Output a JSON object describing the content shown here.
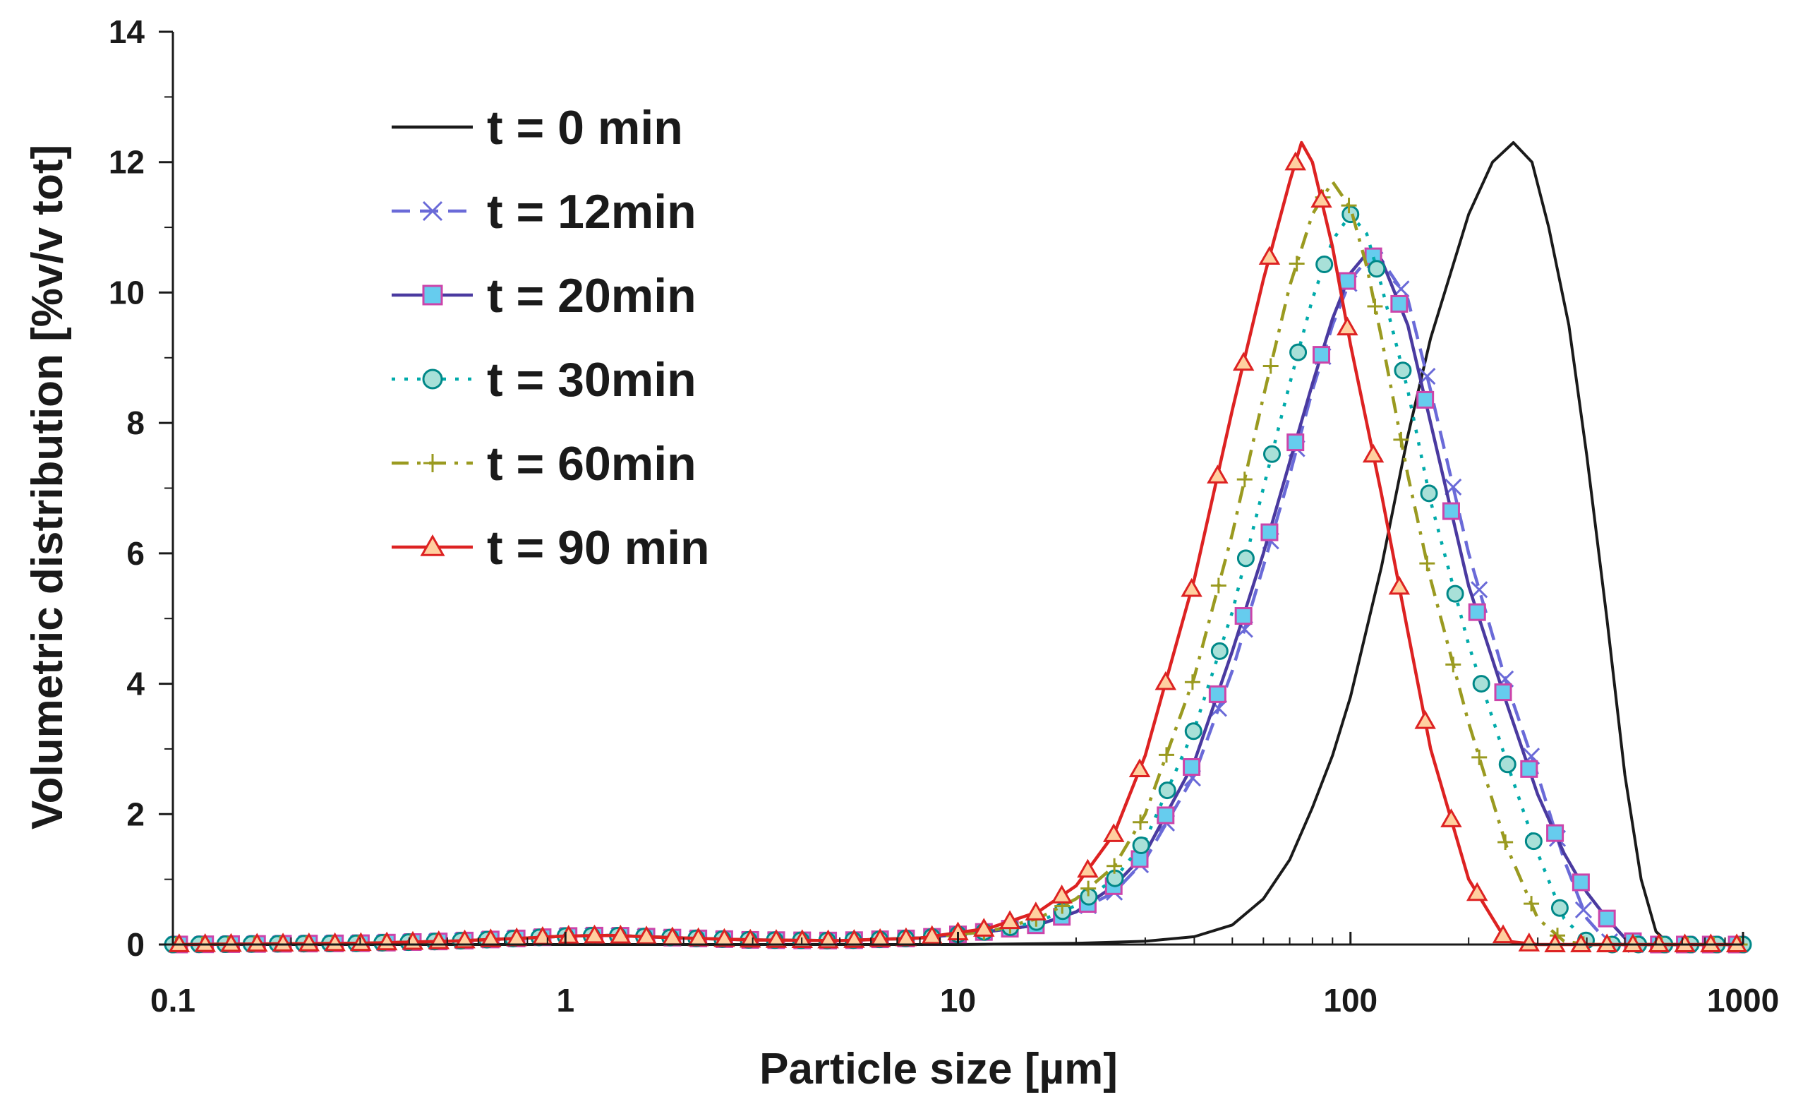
{
  "chart_data": {
    "type": "line",
    "title": "",
    "xlabel": "Particle size [µm]",
    "ylabel": "Volumetric distribution [%v/v tot]",
    "xscale": "log",
    "xlim": [
      0.1,
      1000
    ],
    "ylim": [
      0,
      14
    ],
    "xticks": [
      {
        "value": 0.1,
        "label": "0.1"
      },
      {
        "value": 1,
        "label": "1"
      },
      {
        "value": 10,
        "label": "10"
      },
      {
        "value": 100,
        "label": "100"
      },
      {
        "value": 1000,
        "label": "1000"
      }
    ],
    "yticks": [
      {
        "value": 0,
        "label": "0"
      },
      {
        "value": 2,
        "label": "2"
      },
      {
        "value": 4,
        "label": "4"
      },
      {
        "value": 6,
        "label": "6"
      },
      {
        "value": 8,
        "label": "8"
      },
      {
        "value": 10,
        "label": "10"
      },
      {
        "value": 12,
        "label": "12"
      },
      {
        "value": 14,
        "label": "14"
      }
    ],
    "legend_position": "top-left",
    "grid": false,
    "series": [
      {
        "name": "t = 0 min",
        "color": "#1a1a1a",
        "dash": "solid",
        "marker": "none",
        "points": [
          [
            0.1,
            0
          ],
          [
            0.5,
            0
          ],
          [
            1,
            0
          ],
          [
            5,
            0
          ],
          [
            10,
            0
          ],
          [
            20,
            0.02
          ],
          [
            30,
            0.05
          ],
          [
            40,
            0.12
          ],
          [
            50,
            0.3
          ],
          [
            60,
            0.7
          ],
          [
            70,
            1.3
          ],
          [
            80,
            2.1
          ],
          [
            90,
            2.9
          ],
          [
            100,
            3.8
          ],
          [
            120,
            5.8
          ],
          [
            140,
            7.8
          ],
          [
            160,
            9.3
          ],
          [
            180,
            10.3
          ],
          [
            200,
            11.2
          ],
          [
            230,
            12.0
          ],
          [
            260,
            12.3
          ],
          [
            290,
            12.0
          ],
          [
            320,
            11.0
          ],
          [
            360,
            9.5
          ],
          [
            400,
            7.5
          ],
          [
            450,
            5.0
          ],
          [
            500,
            2.6
          ],
          [
            550,
            1.0
          ],
          [
            600,
            0.2
          ],
          [
            650,
            0
          ],
          [
            1000,
            0
          ]
        ]
      },
      {
        "name": "t = 12min",
        "color": "#6a6ad8",
        "dash": "dash",
        "marker": "x",
        "points": [
          [
            0.1,
            0
          ],
          [
            0.3,
            0.02
          ],
          [
            0.5,
            0.05
          ],
          [
            0.8,
            0.1
          ],
          [
            1,
            0.13
          ],
          [
            1.3,
            0.14
          ],
          [
            2,
            0.1
          ],
          [
            3,
            0.07
          ],
          [
            5,
            0.06
          ],
          [
            8,
            0.1
          ],
          [
            12,
            0.2
          ],
          [
            16,
            0.3
          ],
          [
            20,
            0.5
          ],
          [
            25,
            0.8
          ],
          [
            30,
            1.3
          ],
          [
            40,
            2.6
          ],
          [
            50,
            4.2
          ],
          [
            60,
            5.8
          ],
          [
            70,
            7.2
          ],
          [
            80,
            8.5
          ],
          [
            90,
            9.5
          ],
          [
            100,
            10.2
          ],
          [
            110,
            10.5
          ],
          [
            120,
            10.5
          ],
          [
            140,
            9.9
          ],
          [
            160,
            8.5
          ],
          [
            200,
            6.0
          ],
          [
            250,
            4.0
          ],
          [
            300,
            2.6
          ],
          [
            350,
            1.3
          ],
          [
            400,
            0.4
          ],
          [
            450,
            0.05
          ],
          [
            500,
            0
          ],
          [
            1000,
            0
          ]
        ]
      },
      {
        "name": "t = 20min",
        "color": "#4a3aa0",
        "dash": "solid",
        "marker": "square",
        "points": [
          [
            0.1,
            0
          ],
          [
            0.3,
            0.02
          ],
          [
            0.5,
            0.05
          ],
          [
            0.8,
            0.1
          ],
          [
            1,
            0.13
          ],
          [
            1.3,
            0.14
          ],
          [
            2,
            0.1
          ],
          [
            3,
            0.07
          ],
          [
            5,
            0.06
          ],
          [
            8,
            0.1
          ],
          [
            12,
            0.2
          ],
          [
            16,
            0.3
          ],
          [
            20,
            0.5
          ],
          [
            25,
            0.9
          ],
          [
            30,
            1.4
          ],
          [
            40,
            2.8
          ],
          [
            50,
            4.5
          ],
          [
            60,
            6.0
          ],
          [
            70,
            7.4
          ],
          [
            80,
            8.6
          ],
          [
            90,
            9.6
          ],
          [
            100,
            10.3
          ],
          [
            110,
            10.6
          ],
          [
            120,
            10.5
          ],
          [
            140,
            9.5
          ],
          [
            160,
            8.0
          ],
          [
            200,
            5.5
          ],
          [
            250,
            3.7
          ],
          [
            300,
            2.3
          ],
          [
            350,
            1.4
          ],
          [
            400,
            0.8
          ],
          [
            450,
            0.4
          ],
          [
            500,
            0.1
          ],
          [
            550,
            0
          ],
          [
            1000,
            0
          ]
        ]
      },
      {
        "name": "t = 30min",
        "color": "#00aaaa",
        "dash": "dot",
        "marker": "circle",
        "points": [
          [
            0.1,
            0
          ],
          [
            0.3,
            0.02
          ],
          [
            0.5,
            0.05
          ],
          [
            0.8,
            0.1
          ],
          [
            1,
            0.13
          ],
          [
            1.3,
            0.14
          ],
          [
            2,
            0.1
          ],
          [
            3,
            0.07
          ],
          [
            5,
            0.06
          ],
          [
            8,
            0.1
          ],
          [
            12,
            0.2
          ],
          [
            16,
            0.35
          ],
          [
            20,
            0.6
          ],
          [
            25,
            1.0
          ],
          [
            30,
            1.6
          ],
          [
            40,
            3.3
          ],
          [
            50,
            5.1
          ],
          [
            60,
            7.0
          ],
          [
            70,
            8.6
          ],
          [
            80,
            9.9
          ],
          [
            90,
            10.8
          ],
          [
            100,
            11.2
          ],
          [
            110,
            10.9
          ],
          [
            120,
            10.1
          ],
          [
            140,
            8.5
          ],
          [
            160,
            6.8
          ],
          [
            200,
            4.6
          ],
          [
            250,
            2.8
          ],
          [
            300,
            1.4
          ],
          [
            350,
            0.4
          ],
          [
            400,
            0.05
          ],
          [
            450,
            0
          ],
          [
            1000,
            0
          ]
        ]
      },
      {
        "name": "t = 60min",
        "color": "#9a9a20",
        "dash": "dashdot",
        "marker": "plus",
        "points": [
          [
            0.1,
            0
          ],
          [
            0.3,
            0.02
          ],
          [
            0.5,
            0.05
          ],
          [
            0.8,
            0.1
          ],
          [
            1,
            0.13
          ],
          [
            1.3,
            0.14
          ],
          [
            2,
            0.1
          ],
          [
            3,
            0.07
          ],
          [
            5,
            0.06
          ],
          [
            8,
            0.1
          ],
          [
            12,
            0.2
          ],
          [
            16,
            0.4
          ],
          [
            20,
            0.7
          ],
          [
            25,
            1.2
          ],
          [
            30,
            2.0
          ],
          [
            40,
            4.1
          ],
          [
            50,
            6.3
          ],
          [
            60,
            8.4
          ],
          [
            70,
            10.1
          ],
          [
            80,
            11.2
          ],
          [
            90,
            11.7
          ],
          [
            100,
            11.3
          ],
          [
            110,
            10.4
          ],
          [
            120,
            9.3
          ],
          [
            140,
            7.2
          ],
          [
            160,
            5.6
          ],
          [
            200,
            3.4
          ],
          [
            250,
            1.5
          ],
          [
            300,
            0.4
          ],
          [
            350,
            0.05
          ],
          [
            400,
            0
          ],
          [
            1000,
            0
          ]
        ]
      },
      {
        "name": "t = 90 min",
        "color": "#dd2222",
        "dash": "solid",
        "marker": "triangle",
        "points": [
          [
            0.1,
            0
          ],
          [
            0.3,
            0.02
          ],
          [
            0.5,
            0.05
          ],
          [
            0.8,
            0.1
          ],
          [
            1,
            0.13
          ],
          [
            1.3,
            0.14
          ],
          [
            2,
            0.1
          ],
          [
            3,
            0.07
          ],
          [
            5,
            0.06
          ],
          [
            8,
            0.1
          ],
          [
            12,
            0.25
          ],
          [
            16,
            0.5
          ],
          [
            20,
            0.9
          ],
          [
            25,
            1.7
          ],
          [
            30,
            2.9
          ],
          [
            40,
            5.6
          ],
          [
            50,
            8.2
          ],
          [
            60,
            10.2
          ],
          [
            70,
            11.7
          ],
          [
            75,
            12.3
          ],
          [
            80,
            12.0
          ],
          [
            90,
            10.7
          ],
          [
            100,
            9.2
          ],
          [
            120,
            6.9
          ],
          [
            140,
            4.8
          ],
          [
            160,
            3.0
          ],
          [
            200,
            1.0
          ],
          [
            250,
            0.05
          ],
          [
            300,
            0
          ],
          [
            1000,
            0
          ]
        ]
      }
    ]
  }
}
